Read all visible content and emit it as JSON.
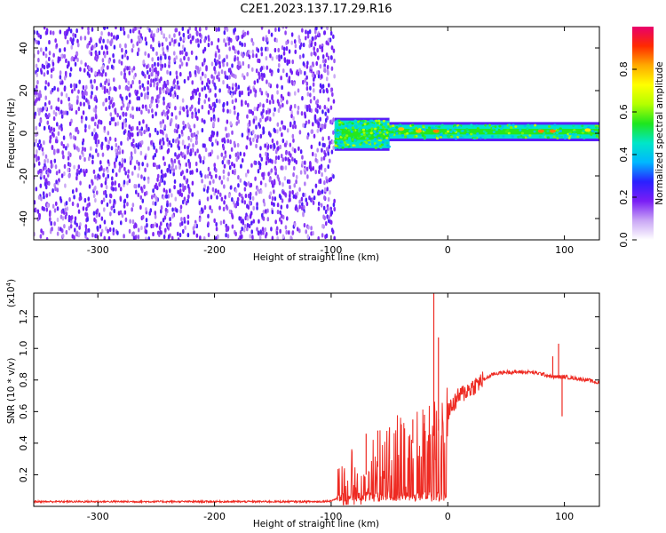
{
  "title": "C2E1.2023.137.17.29.R16",
  "chart_data": [
    {
      "type": "heatmap",
      "xlabel": "Height of straight line (km)",
      "ylabel": "Frequency (Hz)",
      "xlim": [
        -355,
        130
      ],
      "ylim": [
        -50,
        50
      ],
      "xticks": [
        -300,
        -200,
        -100,
        0,
        100
      ],
      "yticks": [
        -40,
        -20,
        0,
        20,
        40
      ],
      "colorbar": {
        "label": "Normalized spectral amplitude",
        "range": [
          0.0,
          1.0
        ],
        "ticks": [
          "0.0",
          "0.2",
          "0.4",
          "0.6",
          "0.8"
        ],
        "colors": [
          "#ffffff",
          "#c9a6f5",
          "#7a1ef5",
          "#2a20ff",
          "#00b7ff",
          "#00e6c8",
          "#1ee61e",
          "#b4ff00",
          "#ffff00",
          "#ffaa00",
          "#ff2a00",
          "#e8006c"
        ]
      },
      "regions": [
        {
          "x_from": -355,
          "x_to": -97,
          "freq_from": -50,
          "freq_to": 50,
          "amplitude": 0.2
        },
        {
          "x_from": -97,
          "x_to": -50,
          "freq_from": -7,
          "freq_to": 6,
          "amplitude": 0.55
        },
        {
          "x_from": -50,
          "x_to": 130,
          "freq_from": -2.5,
          "freq_to": 4,
          "amplitude": 0.55
        }
      ],
      "peaks": [
        {
          "x": -40,
          "y": 2,
          "amplitude": 0.8
        },
        {
          "x": -25,
          "y": 1,
          "amplitude": 0.8
        },
        {
          "x": -10,
          "y": 1,
          "amplitude": 0.85
        },
        {
          "x": 80,
          "y": 1,
          "amplitude": 0.85
        },
        {
          "x": 90,
          "y": 1,
          "amplitude": 0.85
        },
        {
          "x": 120,
          "y": 1.5,
          "amplitude": 0.75
        }
      ]
    },
    {
      "type": "line",
      "xlabel": "Height of straight line (km)",
      "ylabel": "SNR (10 * v/v)",
      "y_multiplier": "(x10",
      "y_multiplier_exp": "4",
      "y_multiplier_close": ")",
      "xlim": [
        -355,
        130
      ],
      "ylim": [
        0,
        1.35
      ],
      "xticks": [
        -300,
        -200,
        -100,
        0,
        100
      ],
      "yticks": [
        "0.2",
        "0.4",
        "0.6",
        "0.8",
        "1.0",
        "1.2"
      ],
      "color": "#ee2a22",
      "x": [
        -355,
        -300,
        -200,
        -110,
        -100,
        -95,
        -90,
        -85,
        -80,
        -70,
        -60,
        -50,
        -40,
        -30,
        -20,
        -15,
        -10,
        -8,
        0,
        10,
        20,
        30,
        40,
        50,
        60,
        70,
        80,
        85,
        90,
        95,
        100,
        110,
        120,
        130
      ],
      "y": [
        0.03,
        0.03,
        0.03,
        0.03,
        0.035,
        0.05,
        0.08,
        0.12,
        0.15,
        0.2,
        0.25,
        0.3,
        0.35,
        0.4,
        0.42,
        0.44,
        0.45,
        0.48,
        0.6,
        0.7,
        0.75,
        0.8,
        0.84,
        0.85,
        0.85,
        0.85,
        0.84,
        0.83,
        0.82,
        0.82,
        0.82,
        0.81,
        0.8,
        0.78
      ],
      "spikes": [
        {
          "x": -12,
          "y": 1.35
        },
        {
          "x": -8,
          "y": 1.07
        },
        {
          "x": -70,
          "y": 0.46
        },
        {
          "x": -60,
          "y": 0.48
        },
        {
          "x": -50,
          "y": 0.5
        },
        {
          "x": -40,
          "y": 0.52
        },
        {
          "x": -30,
          "y": 0.55
        },
        {
          "x": -20,
          "y": 0.58
        },
        {
          "x": 10,
          "y": 0.72
        },
        {
          "x": 20,
          "y": 0.75
        },
        {
          "x": 95,
          "y": 1.03
        },
        {
          "x": 90,
          "y": 0.95
        },
        {
          "x": 98,
          "y": 0.57
        }
      ]
    }
  ]
}
